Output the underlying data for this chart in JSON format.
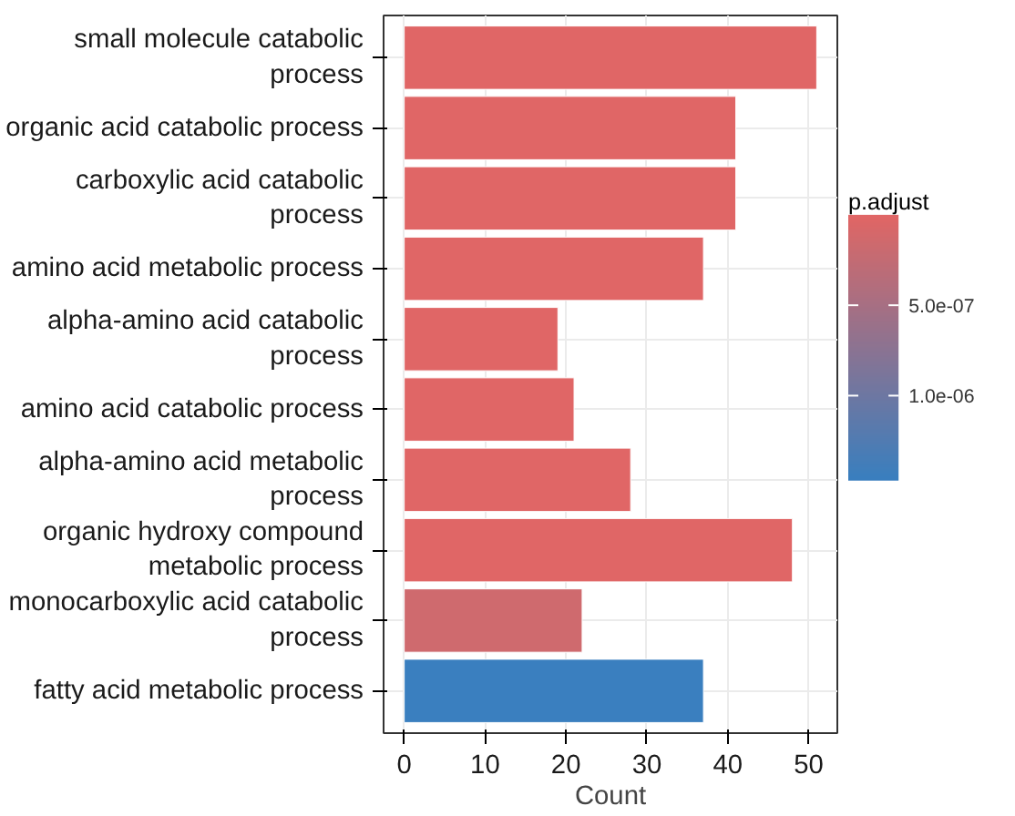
{
  "chart_data": {
    "type": "bar",
    "orientation": "horizontal",
    "xlabel": "Count",
    "clabel": "p.adjust",
    "categories": [
      "small molecule catabolic process",
      "organic acid catabolic process",
      "carboxylic acid catabolic process",
      "amino acid metabolic process",
      "alpha-amino acid catabolic process",
      "amino acid catabolic process",
      "alpha-amino acid metabolic process",
      "organic hydroxy compound metabolic process",
      "monocarboxylic acid catabolic process",
      "fatty acid metabolic process"
    ],
    "values": [
      51,
      41,
      41,
      37,
      19,
      21,
      28,
      48,
      22,
      37
    ],
    "cvalues": [
      2e-08,
      2e-08,
      2e-08,
      2e-08,
      2e-08,
      2e-08,
      2e-08,
      2e-08,
      1.5e-07,
      1.45e-06
    ],
    "colors": [
      "#e06666",
      "#e06666",
      "#e06666",
      "#e06666",
      "#e06666",
      "#e06666",
      "#e06666",
      "#e06666",
      "#cf6a6e",
      "#3a7fbf"
    ],
    "clim": [
      0,
      1.47e-06
    ],
    "cticks": [
      {
        "value": 5e-07,
        "label": "5.0e-07"
      },
      {
        "value": 1e-06,
        "label": "1.0e-06"
      }
    ],
    "xlim": [
      -2.55,
      53.55
    ],
    "xticks": [
      0,
      10,
      20,
      30,
      40,
      50
    ],
    "grid": true
  }
}
